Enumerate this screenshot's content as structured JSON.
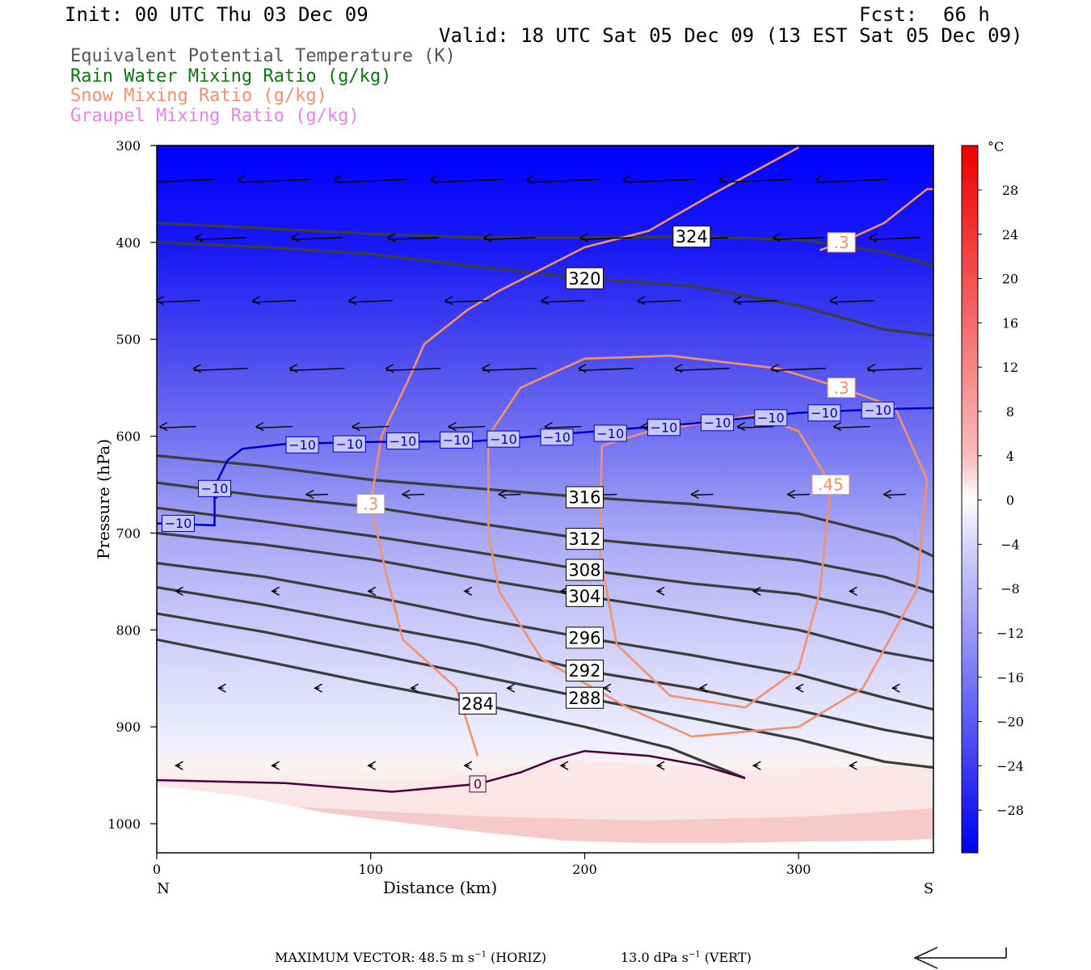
{
  "header": {
    "init": "Init: 00 UTC Thu 03 Dec 09",
    "fcst_label": "Fcst:",
    "fcst_value": "66 h",
    "valid": "Valid: 18 UTC Sat 05 Dec 09 (13 EST Sat 05 Dec 09)"
  },
  "legend": [
    {
      "text": "Equivalent Potential Temperature (K)",
      "color": "#555555"
    },
    {
      "text": "Rain Water Mixing Ratio (g/kg)",
      "color": "#0a7a0a"
    },
    {
      "text": "Snow Mixing Ratio (g/kg)",
      "color": "#f4916a"
    },
    {
      "text": "Graupel Mixing Ratio (g/kg)",
      "color": "#ee82ee"
    }
  ],
  "colorbar": {
    "unit": "°C",
    "labels": [
      "28",
      "24",
      "20",
      "16",
      "12",
      "8",
      "4",
      "0",
      "-4",
      "-8",
      "-12",
      "-16",
      "-20",
      "-24",
      "-28"
    ]
  },
  "footer": {
    "max_vector_label": "MAXIMUM VECTOR:",
    "horiz": "48.5 m s",
    "horiz_unit": "(HORIZ)",
    "vert": "13.0 dPa s",
    "vert_unit": "(VERT)"
  },
  "chart_data": {
    "type": "cross-section contour",
    "xlabel": "Distance (km)",
    "ylabel": "Pressure (hPa)",
    "xlim": [
      0,
      363
    ],
    "ylim": [
      1030,
      300
    ],
    "y_log_scale": false,
    "x_ticks": [
      "0",
      "100",
      "200",
      "300"
    ],
    "x_tick_values": [
      0,
      100,
      200,
      300
    ],
    "y_ticks": [
      "300",
      "400",
      "500",
      "600",
      "700",
      "800",
      "900",
      "1000"
    ],
    "y_tick_values": [
      300,
      400,
      500,
      600,
      700,
      800,
      900,
      1000
    ],
    "x_end_labels": {
      "left": "N",
      "right": "S"
    },
    "theta_e_lines": [
      {
        "label": "324",
        "points": [
          [
            0,
            380
          ],
          [
            100,
            391
          ],
          [
            150,
            395
          ],
          [
            200,
            395
          ],
          [
            250,
            394
          ],
          [
            300,
            397
          ],
          [
            340,
            410
          ],
          [
            363,
            424
          ]
        ]
      },
      {
        "label": "320",
        "points": [
          [
            0,
            400
          ],
          [
            50,
            405
          ],
          [
            100,
            412
          ],
          [
            150,
            425
          ],
          [
            200,
            437
          ],
          [
            250,
            445
          ],
          [
            300,
            465
          ],
          [
            340,
            490
          ],
          [
            363,
            496
          ]
        ]
      },
      {
        "label": "316",
        "points": [
          [
            0,
            620
          ],
          [
            50,
            631
          ],
          [
            100,
            645
          ],
          [
            150,
            654
          ],
          [
            200,
            663
          ],
          [
            250,
            670
          ],
          [
            300,
            680
          ],
          [
            345,
            705
          ],
          [
            363,
            724
          ]
        ]
      },
      {
        "label": "312",
        "points": [
          [
            0,
            648
          ],
          [
            50,
            662
          ],
          [
            100,
            673
          ],
          [
            150,
            690
          ],
          [
            200,
            706
          ],
          [
            250,
            716
          ],
          [
            300,
            728
          ],
          [
            340,
            745
          ],
          [
            363,
            761
          ]
        ]
      },
      {
        "label": "308",
        "points": [
          [
            0,
            674
          ],
          [
            50,
            688
          ],
          [
            100,
            703
          ],
          [
            150,
            720
          ],
          [
            200,
            738
          ],
          [
            250,
            752
          ],
          [
            300,
            763
          ],
          [
            340,
            782
          ],
          [
            363,
            798
          ]
        ]
      },
      {
        "label": "304",
        "points": [
          [
            0,
            700
          ],
          [
            50,
            712
          ],
          [
            100,
            727
          ],
          [
            150,
            747
          ],
          [
            200,
            765
          ],
          [
            250,
            782
          ],
          [
            300,
            800
          ],
          [
            340,
            823
          ],
          [
            363,
            832
          ]
        ]
      },
      {
        "label": "296",
        "points": [
          [
            0,
            731
          ],
          [
            50,
            745
          ],
          [
            100,
            765
          ],
          [
            150,
            788
          ],
          [
            200,
            808
          ],
          [
            250,
            826
          ],
          [
            300,
            846
          ],
          [
            340,
            870
          ],
          [
            363,
            882
          ]
        ]
      },
      {
        "label": "292",
        "points": [
          [
            0,
            756
          ],
          [
            50,
            774
          ],
          [
            100,
            795
          ],
          [
            150,
            815
          ],
          [
            200,
            842
          ],
          [
            250,
            860
          ],
          [
            300,
            883
          ],
          [
            340,
            903
          ],
          [
            363,
            912
          ]
        ]
      },
      {
        "label": "288",
        "points": [
          [
            0,
            783
          ],
          [
            50,
            802
          ],
          [
            100,
            824
          ],
          [
            150,
            847
          ],
          [
            200,
            870
          ],
          [
            250,
            891
          ],
          [
            300,
            913
          ],
          [
            340,
            936
          ],
          [
            363,
            942
          ]
        ]
      },
      {
        "label": "284",
        "points": [
          [
            0,
            810
          ],
          [
            50,
            832
          ],
          [
            100,
            855
          ],
          [
            150,
            876
          ],
          [
            200,
            900
          ],
          [
            240,
            922
          ],
          [
            275,
            953
          ]
        ]
      }
    ],
    "isotherm_-10C": {
      "points": [
        [
          0,
          690
        ],
        [
          27,
          692
        ],
        [
          27,
          652
        ],
        [
          33,
          625
        ],
        [
          40,
          613
        ],
        [
          60,
          608
        ],
        [
          100,
          606
        ],
        [
          150,
          605
        ],
        [
          200,
          596
        ],
        [
          250,
          587
        ],
        [
          300,
          576
        ],
        [
          340,
          572
        ],
        [
          363,
          571
        ]
      ],
      "labels": [
        "-10",
        "-10",
        "-10",
        "-10",
        "-10",
        "-10",
        "-10",
        "-10",
        "-10",
        "-10",
        "-10",
        "-10",
        "-10",
        "-10",
        "-10"
      ]
    },
    "isotherm_0C": {
      "label": "0",
      "points": [
        [
          0,
          955
        ],
        [
          60,
          958
        ],
        [
          110,
          967
        ],
        [
          150,
          959
        ],
        [
          170,
          947
        ],
        [
          185,
          934
        ],
        [
          200,
          925
        ],
        [
          230,
          930
        ],
        [
          255,
          940
        ],
        [
          275,
          953
        ]
      ]
    },
    "snow_contours": [
      {
        "label": ".3",
        "points": [
          [
            150,
            930
          ],
          [
            140,
            860
          ],
          [
            115,
            810
          ],
          [
            107,
            740
          ],
          [
            100,
            670
          ],
          [
            105,
            600
          ],
          [
            118,
            540
          ],
          [
            125,
            505
          ],
          [
            145,
            470
          ],
          [
            160,
            450
          ],
          [
            200,
            405
          ],
          [
            230,
            388
          ],
          [
            260,
            350
          ],
          [
            300,
            302
          ]
        ]
      },
      {
        "label": ".45",
        "points": [
          [
            208,
            610
          ],
          [
            230,
            595
          ],
          [
            280,
            578
          ],
          [
            300,
            595
          ],
          [
            315,
            650
          ],
          [
            310,
            760
          ],
          [
            300,
            840
          ],
          [
            275,
            880
          ],
          [
            240,
            868
          ],
          [
            215,
            815
          ],
          [
            207,
            720
          ],
          [
            208,
            610
          ]
        ]
      },
      {
        "label": ".3",
        "points": [
          [
            155,
            600
          ],
          [
            170,
            550
          ],
          [
            200,
            520
          ],
          [
            240,
            517
          ],
          [
            290,
            530
          ],
          [
            320,
            550
          ],
          [
            345,
            570
          ],
          [
            360,
            645
          ],
          [
            355,
            760
          ],
          [
            330,
            860
          ],
          [
            300,
            900
          ],
          [
            250,
            910
          ],
          [
            220,
            880
          ],
          [
            180,
            830
          ],
          [
            160,
            760
          ],
          [
            155,
            700
          ],
          [
            155,
            600
          ]
        ]
      },
      {
        "label": ".3",
        "points": [
          [
            310,
            408
          ],
          [
            320,
            400
          ],
          [
            340,
            380
          ],
          [
            360,
            345
          ],
          [
            363,
            345
          ]
        ]
      }
    ],
    "colorbar_unit": "°C",
    "colorbar_range": [
      -32,
      32
    ],
    "max_vector_horiz": "48.5 m s-1",
    "max_vector_vert": "13.0 dPa s-1"
  }
}
